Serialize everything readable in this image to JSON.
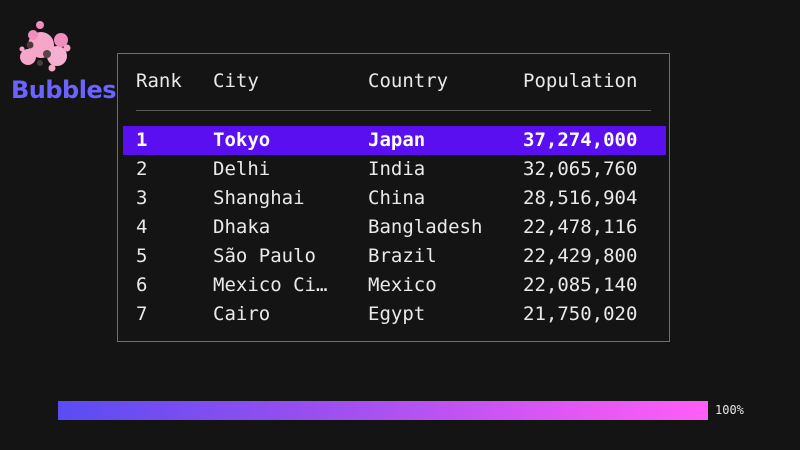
{
  "brand": {
    "name": "Bubbles",
    "logo_icon": "bubbles-logo-icon",
    "text_color": "#6a63ff",
    "bubble_color": "#f6a6c9"
  },
  "table": {
    "headers": {
      "rank": "Rank",
      "city": "City",
      "country": "Country",
      "population": "Population"
    },
    "selected_row": 0,
    "selection_color": "#5a0ff0",
    "rows": [
      {
        "rank": "1",
        "city": "Tokyo",
        "country": "Japan",
        "population": "37,274,000"
      },
      {
        "rank": "2",
        "city": "Delhi",
        "country": "India",
        "population": "32,065,760"
      },
      {
        "rank": "3",
        "city": "Shanghai",
        "country": "China",
        "population": "28,516,904"
      },
      {
        "rank": "4",
        "city": "Dhaka",
        "country": "Bangladesh",
        "population": "22,478,116"
      },
      {
        "rank": "5",
        "city": "São Paulo",
        "country": "Brazil",
        "population": "22,429,800"
      },
      {
        "rank": "6",
        "city": "Mexico Ci…",
        "country": "Mexico",
        "population": "22,085,140"
      },
      {
        "rank": "7",
        "city": "Cairo",
        "country": "Egypt",
        "population": "21,750,020"
      }
    ]
  },
  "progress": {
    "value": 1.0,
    "label": "100%"
  }
}
